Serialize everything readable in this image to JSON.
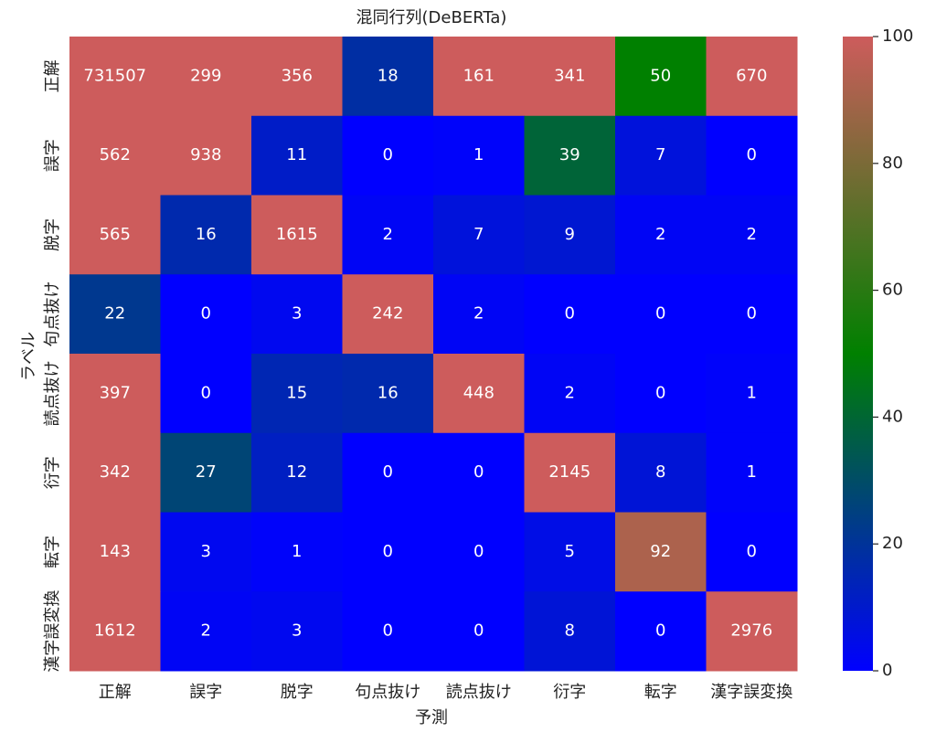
{
  "chart_data": {
    "type": "heatmap",
    "title": "混同行列(DeBERTa)",
    "x_label": "予測",
    "y_label": "ラベル",
    "x_categories": [
      "正解",
      "誤字",
      "脱字",
      "句点抜け",
      "読点抜け",
      "衍字",
      "転字",
      "漢字誤変換"
    ],
    "y_categories": [
      "正解",
      "誤字",
      "脱字",
      "句点抜け",
      "読点抜け",
      "衍字",
      "転字",
      "漢字誤変換"
    ],
    "z": [
      [
        731507,
        299,
        356,
        18,
        161,
        341,
        50,
        670
      ],
      [
        562,
        938,
        11,
        0,
        1,
        39,
        7,
        0
      ],
      [
        565,
        16,
        1615,
        2,
        7,
        9,
        2,
        2
      ],
      [
        22,
        0,
        3,
        242,
        2,
        0,
        0,
        0
      ],
      [
        397,
        0,
        15,
        16,
        448,
        2,
        0,
        1
      ],
      [
        342,
        27,
        12,
        0,
        0,
        2145,
        8,
        1
      ],
      [
        143,
        3,
        1,
        0,
        0,
        5,
        92,
        0
      ],
      [
        1612,
        2,
        3,
        0,
        0,
        8,
        0,
        2976
      ]
    ],
    "colormap": [
      "#0000ff",
      "#008000",
      "#cd5c5c"
    ],
    "zlim": [
      0,
      100
    ],
    "colorbar_ticks": [
      0,
      20,
      40,
      60,
      80,
      100
    ]
  }
}
